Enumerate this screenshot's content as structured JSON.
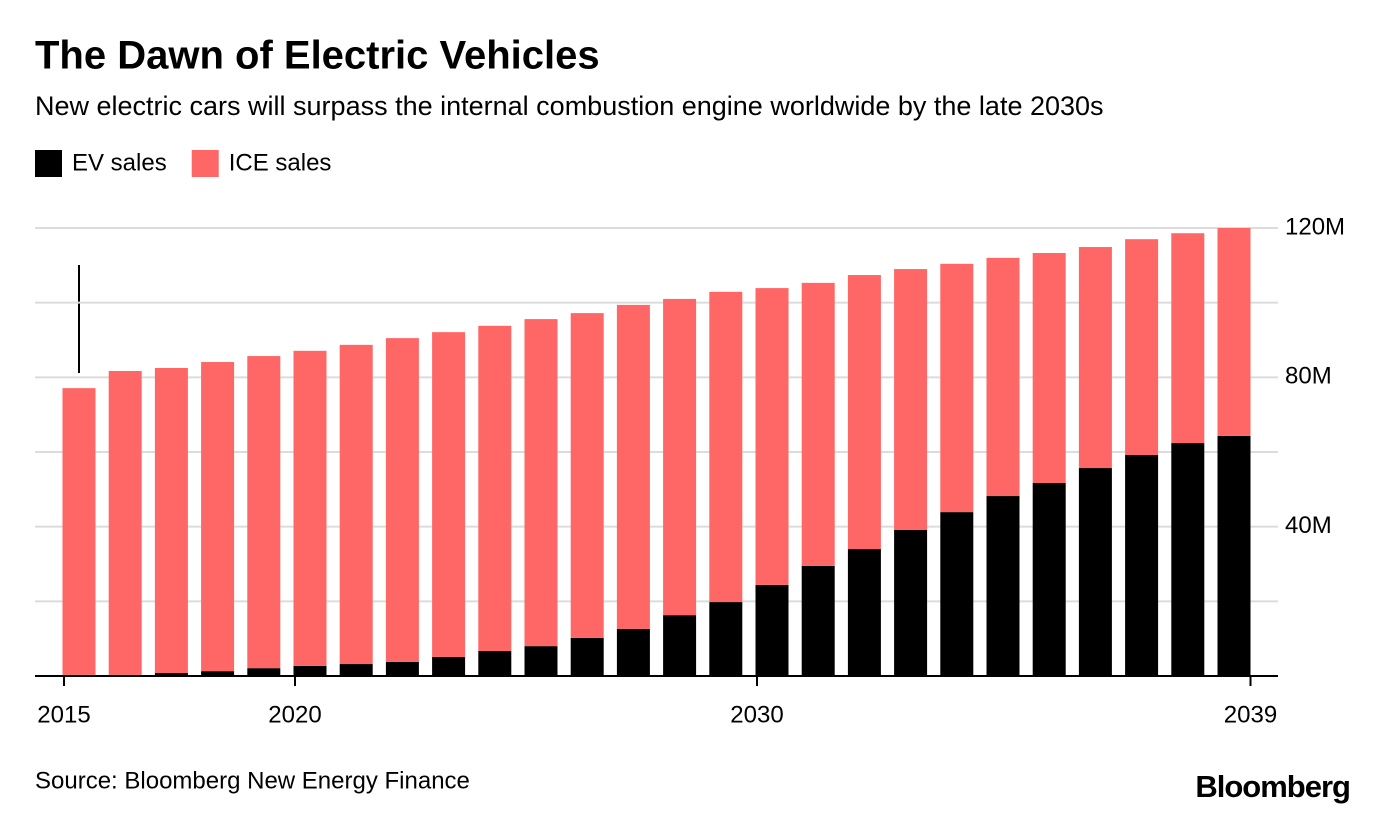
{
  "chart_data": {
    "type": "stacked_bar",
    "title": "The Dawn of Electric Vehicles",
    "subtitle": "New electric cars will surpass the internal combustion engine worldwide by the late 2030s",
    "source": "Source: Bloomberg New Energy Finance",
    "brand": "Bloomberg",
    "categories": [
      "2015",
      null,
      null,
      null,
      null,
      "2020",
      null,
      null,
      null,
      null,
      null,
      null,
      null,
      null,
      null,
      "2030",
      null,
      null,
      null,
      null,
      null,
      null,
      null,
      null,
      null,
      "2039"
    ],
    "series": [
      {
        "name": "EV sales",
        "color": "#000000",
        "values": [
          0.3,
          0.3,
          0.8,
          1.3,
          2.1,
          2.7,
          3.2,
          3.8,
          5.1,
          6.7,
          8.0,
          10.2,
          12.6,
          16.3,
          19.8,
          24.4,
          29.5,
          34.0,
          39.1,
          43.9,
          48.2,
          51.7,
          55.7,
          59.2,
          62.4,
          64.3
        ]
      },
      {
        "name": "ICE sales",
        "color": "#ff6666",
        "values": [
          76.8,
          81.4,
          81.7,
          82.8,
          83.6,
          84.4,
          85.5,
          86.7,
          87.0,
          87.1,
          87.6,
          87.0,
          86.8,
          84.7,
          83.1,
          79.5,
          75.8,
          73.4,
          69.9,
          66.5,
          63.8,
          61.6,
          59.2,
          57.8,
          56.2,
          55.7
        ]
      }
    ],
    "ylim": [
      0,
      120
    ],
    "yticks": [
      {
        "value": 40,
        "label": "40M"
      },
      {
        "value": 80,
        "label": "80M"
      },
      {
        "value": 120,
        "label": "120M"
      }
    ],
    "minor_grid": [
      20,
      60,
      100
    ],
    "grid": true,
    "legend": "top-left"
  }
}
